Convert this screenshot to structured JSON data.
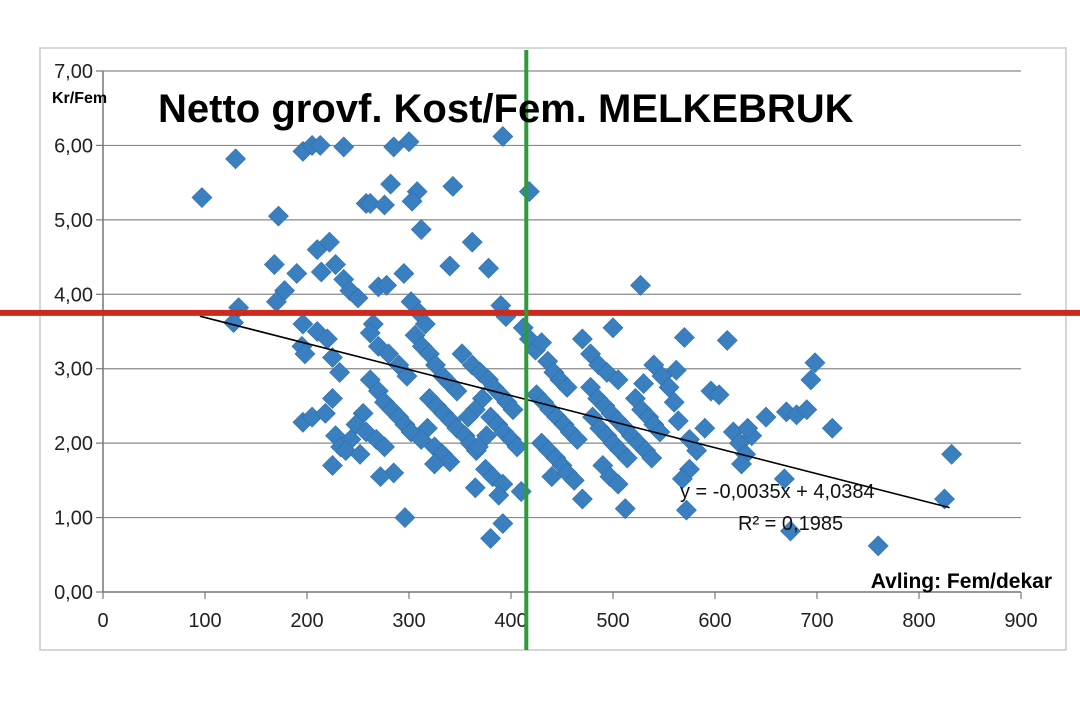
{
  "chart_data": {
    "type": "scatter",
    "title": "Netto grovf. Kost/Fem. MELKEBRUK",
    "xlabel": "Avling: Fem/dekar",
    "ylabel": "Kr/Fem",
    "xlim": [
      0,
      900
    ],
    "ylim": [
      0,
      7
    ],
    "x_ticks": [
      "0",
      "100",
      "200",
      "300",
      "400",
      "500",
      "600",
      "700",
      "800",
      "900"
    ],
    "y_ticks": [
      "0,00",
      "1,00",
      "2,00",
      "3,00",
      "4,00",
      "5,00",
      "6,00",
      "7,00"
    ],
    "grid": "horizontal",
    "marker_color": "#3a7fc0",
    "reference_lines": {
      "horizontal": {
        "y": 3.75,
        "color": "#cc2a1e"
      },
      "vertical": {
        "x": 415,
        "color": "#2e9a3a"
      }
    },
    "trendline": {
      "slope": -0.0035,
      "intercept": 4.0384,
      "x_range": [
        95,
        830
      ],
      "equation_label": "y = -0,0035x + 4,0384",
      "r2_label": "R² = 0,1985"
    },
    "points": [
      [
        97,
        5.3
      ],
      [
        130,
        5.82
      ],
      [
        133,
        3.82
      ],
      [
        128,
        3.62
      ],
      [
        172,
        5.05
      ],
      [
        168,
        4.4
      ],
      [
        178,
        4.05
      ],
      [
        170,
        3.9
      ],
      [
        190,
        4.28
      ],
      [
        196,
        3.6
      ],
      [
        195,
        3.3
      ],
      [
        198,
        3.2
      ],
      [
        196,
        2.28
      ],
      [
        205,
        2.35
      ],
      [
        196,
        5.92
      ],
      [
        205,
        6.0
      ],
      [
        213,
        6.0
      ],
      [
        210,
        4.6
      ],
      [
        214,
        4.3
      ],
      [
        222,
        4.7
      ],
      [
        228,
        4.4
      ],
      [
        236,
        4.2
      ],
      [
        236,
        5.98
      ],
      [
        210,
        3.5
      ],
      [
        220,
        3.4
      ],
      [
        225,
        3.15
      ],
      [
        232,
        2.95
      ],
      [
        225,
        2.6
      ],
      [
        218,
        2.4
      ],
      [
        228,
        2.1
      ],
      [
        233,
        1.95
      ],
      [
        225,
        1.7
      ],
      [
        242,
        4.05
      ],
      [
        250,
        3.95
      ],
      [
        258,
        5.22
      ],
      [
        262,
        5.22
      ],
      [
        270,
        4.1
      ],
      [
        276,
        5.2
      ],
      [
        282,
        5.48
      ],
      [
        278,
        4.12
      ],
      [
        265,
        3.6
      ],
      [
        262,
        3.48
      ],
      [
        270,
        3.3
      ],
      [
        280,
        3.2
      ],
      [
        290,
        3.05
      ],
      [
        298,
        2.9
      ],
      [
        262,
        2.85
      ],
      [
        270,
        2.7
      ],
      [
        276,
        2.55
      ],
      [
        283,
        2.45
      ],
      [
        290,
        2.35
      ],
      [
        296,
        2.25
      ],
      [
        302,
        2.15
      ],
      [
        255,
        2.4
      ],
      [
        248,
        2.25
      ],
      [
        243,
        2.05
      ],
      [
        238,
        1.9
      ],
      [
        252,
        1.85
      ],
      [
        258,
        2.15
      ],
      [
        268,
        2.05
      ],
      [
        276,
        1.95
      ],
      [
        285,
        1.6
      ],
      [
        272,
        1.55
      ],
      [
        296,
        1.0
      ],
      [
        285,
        5.98
      ],
      [
        300,
        6.05
      ],
      [
        308,
        5.38
      ],
      [
        303,
        5.25
      ],
      [
        312,
        4.87
      ],
      [
        295,
        4.28
      ],
      [
        302,
        3.9
      ],
      [
        310,
        3.75
      ],
      [
        316,
        3.6
      ],
      [
        306,
        3.45
      ],
      [
        313,
        3.3
      ],
      [
        320,
        3.2
      ],
      [
        326,
        3.05
      ],
      [
        333,
        2.9
      ],
      [
        340,
        2.8
      ],
      [
        347,
        2.7
      ],
      [
        320,
        2.6
      ],
      [
        327,
        2.5
      ],
      [
        334,
        2.4
      ],
      [
        341,
        2.3
      ],
      [
        347,
        2.2
      ],
      [
        355,
        2.1
      ],
      [
        360,
        2.0
      ],
      [
        366,
        1.9
      ],
      [
        318,
        2.2
      ],
      [
        312,
        2.05
      ],
      [
        325,
        1.95
      ],
      [
        333,
        1.85
      ],
      [
        340,
        1.75
      ],
      [
        325,
        1.72
      ],
      [
        343,
        5.45
      ],
      [
        340,
        4.38
      ],
      [
        362,
        4.7
      ],
      [
        378,
        4.35
      ],
      [
        392,
        6.12
      ],
      [
        390,
        3.85
      ],
      [
        395,
        3.7
      ],
      [
        352,
        3.2
      ],
      [
        362,
        3.05
      ],
      [
        370,
        2.95
      ],
      [
        378,
        2.85
      ],
      [
        383,
        2.75
      ],
      [
        390,
        2.65
      ],
      [
        396,
        2.55
      ],
      [
        402,
        2.45
      ],
      [
        372,
        2.6
      ],
      [
        365,
        2.45
      ],
      [
        358,
        2.35
      ],
      [
        380,
        2.35
      ],
      [
        387,
        2.25
      ],
      [
        393,
        2.15
      ],
      [
        400,
        2.05
      ],
      [
        406,
        1.95
      ],
      [
        376,
        2.1
      ],
      [
        368,
        1.95
      ],
      [
        375,
        1.65
      ],
      [
        382,
        1.55
      ],
      [
        392,
        1.45
      ],
      [
        365,
        1.4
      ],
      [
        388,
        1.3
      ],
      [
        392,
        0.92
      ],
      [
        380,
        0.72
      ],
      [
        410,
        1.35
      ],
      [
        418,
        5.38
      ],
      [
        412,
        3.55
      ],
      [
        418,
        3.4
      ],
      [
        424,
        3.25
      ],
      [
        430,
        3.35
      ],
      [
        436,
        3.1
      ],
      [
        442,
        2.95
      ],
      [
        448,
        2.85
      ],
      [
        455,
        2.75
      ],
      [
        425,
        2.65
      ],
      [
        432,
        2.55
      ],
      [
        438,
        2.45
      ],
      [
        445,
        2.35
      ],
      [
        452,
        2.25
      ],
      [
        458,
        2.15
      ],
      [
        465,
        2.05
      ],
      [
        430,
        2.0
      ],
      [
        437,
        1.9
      ],
      [
        444,
        1.8
      ],
      [
        450,
        1.7
      ],
      [
        440,
        1.55
      ],
      [
        455,
        1.6
      ],
      [
        462,
        1.5
      ],
      [
        470,
        1.25
      ],
      [
        470,
        3.4
      ],
      [
        478,
        3.2
      ],
      [
        486,
        3.05
      ],
      [
        494,
        2.95
      ],
      [
        500,
        3.55
      ],
      [
        505,
        2.85
      ],
      [
        478,
        2.75
      ],
      [
        485,
        2.6
      ],
      [
        492,
        2.5
      ],
      [
        498,
        2.4
      ],
      [
        505,
        2.3
      ],
      [
        512,
        2.2
      ],
      [
        480,
        2.35
      ],
      [
        487,
        2.2
      ],
      [
        494,
        2.1
      ],
      [
        500,
        2.0
      ],
      [
        507,
        1.9
      ],
      [
        514,
        1.8
      ],
      [
        490,
        1.7
      ],
      [
        497,
        1.55
      ],
      [
        505,
        1.45
      ],
      [
        512,
        1.12
      ],
      [
        527,
        4.12
      ],
      [
        522,
        2.6
      ],
      [
        528,
        2.45
      ],
      [
        535,
        2.35
      ],
      [
        540,
        2.25
      ],
      [
        546,
        2.15
      ],
      [
        518,
        2.1
      ],
      [
        525,
        2.0
      ],
      [
        532,
        1.9
      ],
      [
        538,
        1.8
      ],
      [
        530,
        2.8
      ],
      [
        540,
        3.05
      ],
      [
        548,
        2.9
      ],
      [
        555,
        2.75
      ],
      [
        560,
        2.55
      ],
      [
        562,
        2.98
      ],
      [
        570,
        3.42
      ],
      [
        564,
        2.3
      ],
      [
        575,
        2.05
      ],
      [
        582,
        1.9
      ],
      [
        575,
        1.65
      ],
      [
        568,
        1.52
      ],
      [
        572,
        1.1
      ],
      [
        590,
        2.2
      ],
      [
        596,
        2.7
      ],
      [
        604,
        2.65
      ],
      [
        612,
        3.38
      ],
      [
        618,
        2.15
      ],
      [
        624,
        2.0
      ],
      [
        630,
        1.85
      ],
      [
        626,
        1.72
      ],
      [
        636,
        2.1
      ],
      [
        632,
        2.2
      ],
      [
        650,
        2.35
      ],
      [
        668,
        1.52
      ],
      [
        670,
        2.42
      ],
      [
        680,
        2.38
      ],
      [
        690,
        2.45
      ],
      [
        694,
        2.85
      ],
      [
        698,
        3.08
      ],
      [
        674,
        0.82
      ],
      [
        715,
        2.2
      ],
      [
        760,
        0.62
      ],
      [
        825,
        1.25
      ],
      [
        832,
        1.85
      ]
    ]
  }
}
